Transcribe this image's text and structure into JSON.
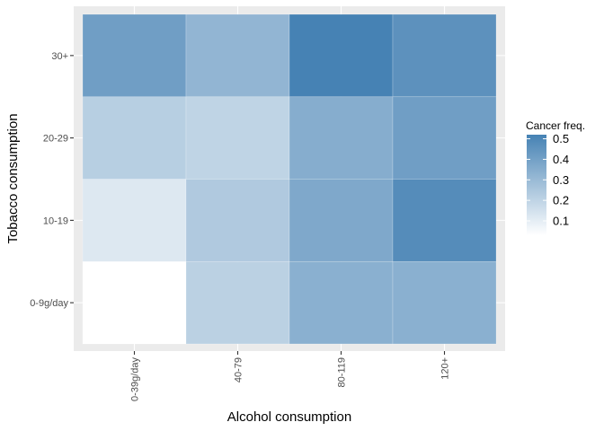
{
  "chart_data": {
    "type": "heatmap",
    "xlabel": "Alcohol consumption",
    "ylabel": "Tobacco consumption",
    "x_categories": [
      "0-39g/day",
      "40-79",
      "80-119",
      "120+"
    ],
    "y_categories": [
      "0-9g/day",
      "10-19",
      "20-29",
      "30+"
    ],
    "values": [
      [
        0.03,
        0.21,
        0.34,
        0.34
      ],
      [
        0.12,
        0.24,
        0.37,
        0.48
      ],
      [
        0.22,
        0.2,
        0.35,
        0.41
      ],
      [
        0.41,
        0.32,
        0.52,
        0.46
      ]
    ],
    "legend": {
      "title": "Cancer freq.",
      "ticks": [
        0.5,
        0.4,
        0.3,
        0.2,
        0.1
      ],
      "tick_labels": [
        "0.5",
        "0.4",
        "0.3",
        "0.2",
        "0.1"
      ],
      "range": [
        0.03,
        0.52
      ]
    },
    "grid": true,
    "legend_position": "right",
    "colors": {
      "low": "#ffffff",
      "high": "#4682b4",
      "panel_background": "#ebebeb",
      "gridline": "#ffffff"
    }
  }
}
